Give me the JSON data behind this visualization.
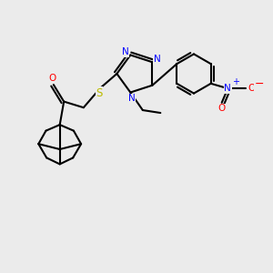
{
  "background_color": "#ebebeb",
  "bond_color": "#000000",
  "bond_width": 1.5,
  "figsize": [
    3.0,
    3.0
  ],
  "dpi": 100,
  "xlim": [
    0,
    10
  ],
  "ylim": [
    0,
    10
  ]
}
